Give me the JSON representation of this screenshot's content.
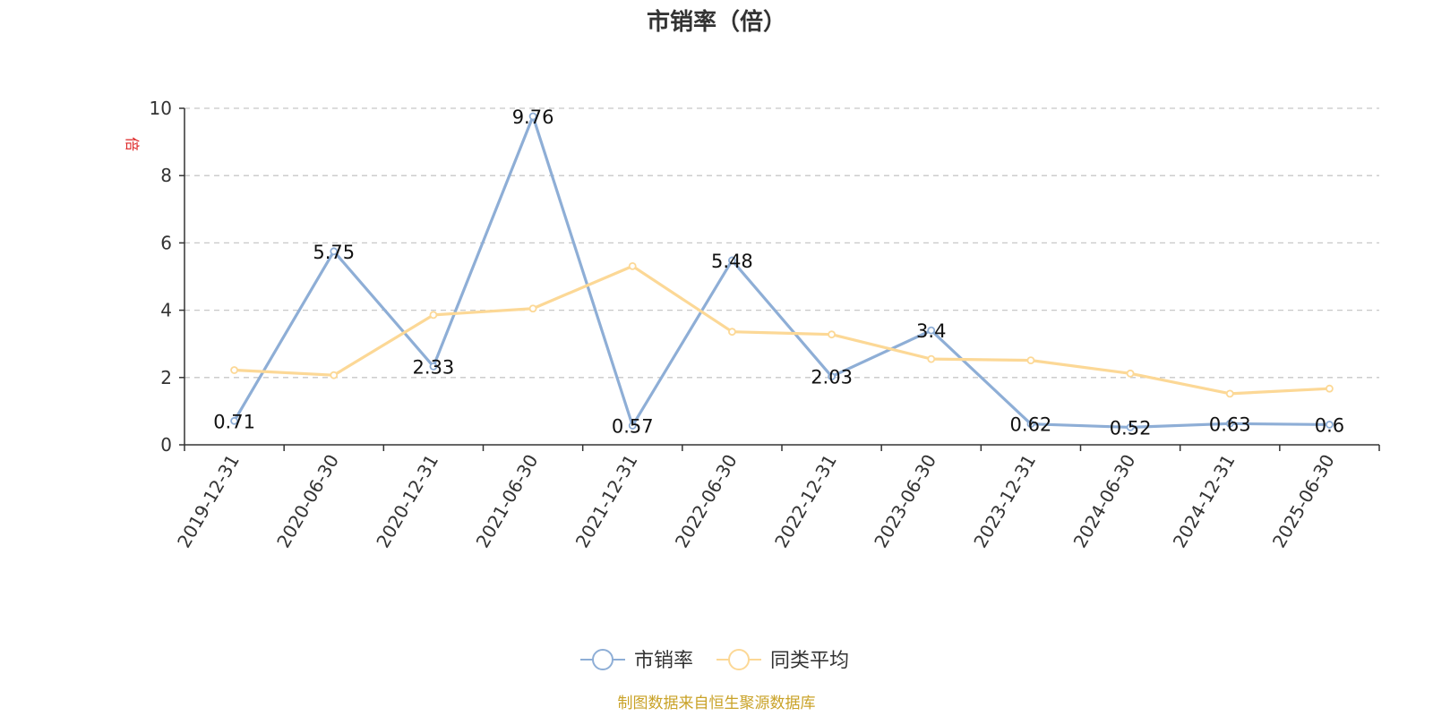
{
  "chart_data": {
    "type": "line",
    "title": "市销率（倍）",
    "ylabel": "倍",
    "ylim": [
      0,
      10
    ],
    "yticks": [
      0,
      2,
      4,
      6,
      8,
      10
    ],
    "grid": true,
    "legend_position": "bottom",
    "categories": [
      "2019-12-31",
      "2020-06-30",
      "2020-12-31",
      "2021-06-30",
      "2021-12-31",
      "2022-06-30",
      "2022-12-31",
      "2023-06-30",
      "2023-12-31",
      "2024-06-30",
      "2024-12-31",
      "2025-06-30"
    ],
    "series": [
      {
        "name": "市销率",
        "color": "#8eaed6",
        "values": [
          0.71,
          5.75,
          2.33,
          9.76,
          0.57,
          5.48,
          2.03,
          3.4,
          0.62,
          0.52,
          0.63,
          0.6
        ],
        "labels": [
          "0.71",
          "5.75",
          "2.33",
          "9.76",
          "0.57",
          "5.48",
          "2.03",
          "3.4",
          "0.62",
          "0.52",
          "0.63",
          "0.6"
        ]
      },
      {
        "name": "同类平均",
        "color": "#fcd896",
        "values": [
          2.22,
          2.07,
          3.86,
          4.05,
          5.31,
          3.36,
          3.28,
          2.55,
          2.51,
          2.12,
          1.52,
          1.67
        ]
      }
    ],
    "source": "制图数据来自恒生聚源数据库",
    "source_color": "#c9a227",
    "unit_color": "#dd2222"
  }
}
